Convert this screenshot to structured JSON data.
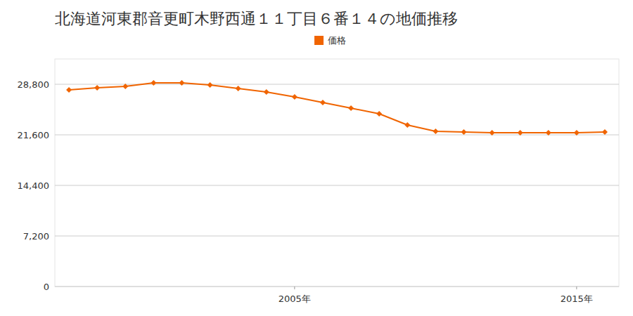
{
  "chart_data": {
    "type": "line",
    "title": "北海道河東郡音更町木野西通１１丁目６番１４の地価推移",
    "x": [
      1997,
      1998,
      1999,
      2000,
      2001,
      2002,
      2003,
      2004,
      2005,
      2006,
      2007,
      2008,
      2009,
      2010,
      2011,
      2012,
      2013,
      2014,
      2015,
      2016
    ],
    "series": [
      {
        "name": "価格",
        "color": "#f06400",
        "marker": "diamond",
        "values": [
          28000,
          28300,
          28500,
          29000,
          29000,
          28700,
          28200,
          27700,
          27000,
          26200,
          25400,
          24600,
          23000,
          22100,
          22000,
          21900,
          21900,
          21900,
          21900,
          22000
        ]
      }
    ],
    "xlim": [
      1996.5,
      2016.5
    ],
    "xticks": [
      {
        "value": 2005,
        "label": "2005年"
      },
      {
        "value": 2015,
        "label": "2015年"
      }
    ],
    "ylim": [
      0,
      32400
    ],
    "yticks": [
      0,
      {
        "value": 7200,
        "label": "7,200"
      },
      {
        "value": 14400,
        "label": "14,400"
      },
      {
        "value": 21600,
        "label": "21,600"
      },
      {
        "value": 28800,
        "label": "28,800"
      }
    ],
    "grid": true,
    "legend": "top"
  }
}
